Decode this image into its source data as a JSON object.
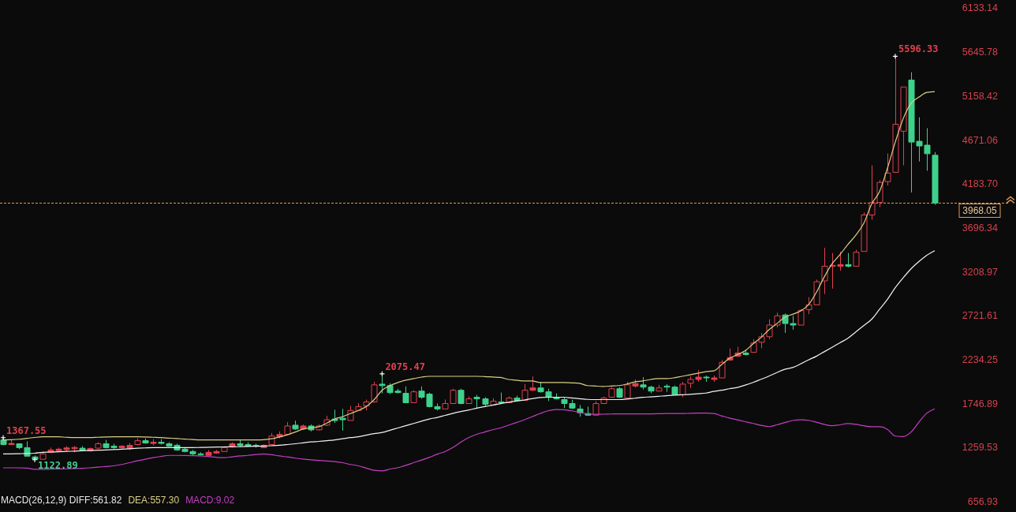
{
  "chart_data": {
    "type": "candlestick",
    "categories": [
      null,
      null,
      null,
      null,
      null,
      null,
      null,
      null,
      null,
      null,
      null,
      null,
      null,
      null,
      null,
      null,
      null,
      null,
      null,
      null,
      null,
      null,
      null,
      null,
      null,
      null,
      null,
      null,
      null,
      null,
      null,
      null,
      null,
      null,
      null,
      null,
      null,
      null,
      null,
      null,
      null,
      null,
      null,
      null,
      null,
      null,
      null,
      null,
      null,
      null,
      null,
      null,
      null,
      null,
      null,
      null,
      null,
      null,
      null,
      null,
      null,
      null,
      null,
      null,
      null,
      null,
      null,
      null,
      null,
      null,
      null,
      null,
      null,
      null,
      null,
      null,
      null,
      null,
      null,
      null,
      null,
      null,
      null,
      null,
      null,
      null,
      null,
      null,
      null,
      null,
      null,
      null,
      null,
      null,
      null,
      null,
      null,
      null,
      null,
      null,
      null,
      null,
      null,
      null,
      null,
      null,
      null,
      null,
      null,
      null,
      null,
      null,
      null,
      null,
      null,
      null,
      null,
      null,
      null
    ],
    "ohlc": [
      [
        1343,
        1367.55,
        1283,
        1291
      ],
      [
        1291,
        1343,
        1291,
        1304
      ],
      [
        1300,
        1300,
        1240,
        1257
      ],
      [
        1257,
        1326,
        1162,
        1162
      ],
      [
        1154,
        1171,
        1122.89,
        1128
      ],
      [
        1128,
        1214,
        1128,
        1188
      ],
      [
        1205,
        1257,
        1197,
        1231
      ],
      [
        1223,
        1257,
        1205,
        1240
      ],
      [
        1236,
        1274,
        1214,
        1254
      ],
      [
        1245,
        1274,
        1205,
        1259
      ],
      [
        1251,
        1274,
        1222,
        1231
      ],
      [
        1223,
        1257,
        1214,
        1248
      ],
      [
        1251,
        1317,
        1240,
        1300
      ],
      [
        1300,
        1343,
        1248,
        1257
      ],
      [
        1274,
        1300,
        1245,
        1257
      ],
      [
        1257,
        1283,
        1245,
        1274
      ],
      [
        1251,
        1308,
        1231,
        1283
      ],
      [
        1291,
        1360,
        1283,
        1334
      ],
      [
        1334,
        1360,
        1300,
        1308
      ],
      [
        1304,
        1351,
        1283,
        1317
      ],
      [
        1317,
        1351,
        1291,
        1304
      ],
      [
        1300,
        1317,
        1266,
        1274
      ],
      [
        1283,
        1300,
        1222,
        1231
      ],
      [
        1240,
        1257,
        1205,
        1214
      ],
      [
        1214,
        1231,
        1171,
        1188
      ],
      [
        1188,
        1205,
        1171,
        1180
      ],
      [
        1171,
        1231,
        1171,
        1205
      ],
      [
        1197,
        1231,
        1188,
        1214
      ],
      [
        1214,
        1274,
        1214,
        1257
      ],
      [
        1266,
        1317,
        1257,
        1300
      ],
      [
        1300,
        1343,
        1266,
        1283
      ],
      [
        1291,
        1317,
        1266,
        1274
      ],
      [
        1283,
        1300,
        1257,
        1274
      ],
      [
        1257,
        1291,
        1257,
        1283
      ],
      [
        1291,
        1420,
        1283,
        1386
      ],
      [
        1377,
        1437,
        1360,
        1403
      ],
      [
        1403,
        1540,
        1394,
        1497
      ],
      [
        1506,
        1557,
        1454,
        1463
      ],
      [
        1463,
        1514,
        1454,
        1497
      ],
      [
        1497,
        1514,
        1437,
        1454
      ],
      [
        1454,
        1514,
        1446,
        1497
      ],
      [
        1506,
        1609,
        1497,
        1566
      ],
      [
        1574,
        1677,
        1531,
        1557
      ],
      [
        1583,
        1687,
        1446,
        1566
      ],
      [
        1558,
        1720,
        1558,
        1669
      ],
      [
        1669,
        1750,
        1660,
        1712
      ],
      [
        1720,
        1790,
        1669,
        1763
      ],
      [
        1764,
        1987,
        1755,
        1953
      ],
      [
        1961,
        2075.47,
        1859,
        1944
      ],
      [
        1945,
        1970,
        1850,
        1867
      ],
      [
        1884,
        1910,
        1860,
        1867
      ],
      [
        1859,
        1936,
        1755,
        1755
      ],
      [
        1755,
        1893,
        1755,
        1876
      ],
      [
        1884,
        1936,
        1798,
        1816
      ],
      [
        1850,
        1867,
        1703,
        1712
      ],
      [
        1712,
        1746,
        1669,
        1686
      ],
      [
        1686,
        1790,
        1686,
        1746
      ],
      [
        1746,
        1910,
        1746,
        1893
      ],
      [
        1893,
        1910,
        1738,
        1746
      ],
      [
        1746,
        1824,
        1746,
        1798
      ],
      [
        1816,
        1841,
        1695,
        1798
      ],
      [
        1798,
        1816,
        1712,
        1738
      ],
      [
        1730,
        1806,
        1730,
        1772
      ],
      [
        1764,
        1867,
        1746,
        1755
      ],
      [
        1755,
        1824,
        1755,
        1807
      ],
      [
        1807,
        1833,
        1772,
        1781
      ],
      [
        1781,
        1961,
        1781,
        1893
      ],
      [
        1893,
        2047,
        1884,
        1919
      ],
      [
        1919,
        1987,
        1867,
        1876
      ],
      [
        1876,
        1910,
        1773,
        1816
      ],
      [
        1816,
        1858,
        1790,
        1798
      ],
      [
        1790,
        1816,
        1695,
        1746
      ],
      [
        1746,
        1790,
        1686,
        1695
      ],
      [
        1686,
        1729,
        1600,
        1643
      ],
      [
        1635,
        1712,
        1609,
        1617
      ],
      [
        1617,
        1773,
        1617,
        1746
      ],
      [
        1746,
        1824,
        1746,
        1807
      ],
      [
        1816,
        1928,
        1816,
        1910
      ],
      [
        1910,
        1928,
        1807,
        1816
      ],
      [
        1807,
        1987,
        1807,
        1953
      ],
      [
        1940,
        2013,
        1925,
        1968
      ],
      [
        1953,
        2038,
        1901,
        1928
      ],
      [
        1928,
        1944,
        1859,
        1884
      ],
      [
        1884,
        1953,
        1884,
        1919
      ],
      [
        1939,
        1961,
        1876,
        1928
      ],
      [
        1928,
        1945,
        1842,
        1842
      ],
      [
        1842,
        1987,
        1816,
        1961
      ],
      [
        1970,
        2047,
        1919,
        2013
      ],
      [
        2013,
        2116,
        1987,
        2039
      ],
      [
        2039,
        2056,
        1987,
        2030
      ],
      [
        2013,
        2056,
        1987,
        2030
      ],
      [
        2030,
        2228,
        2030,
        2203
      ],
      [
        2229,
        2357,
        2220,
        2255
      ],
      [
        2272,
        2375,
        2263,
        2306
      ],
      [
        2306,
        2340,
        2280,
        2289
      ],
      [
        2314,
        2460,
        2314,
        2418
      ],
      [
        2426,
        2530,
        2360,
        2487
      ],
      [
        2487,
        2680,
        2460,
        2616
      ],
      [
        2616,
        2754,
        2590,
        2719
      ],
      [
        2728,
        2745,
        2530,
        2633
      ],
      [
        2633,
        2719,
        2564,
        2616
      ],
      [
        2616,
        2792,
        2616,
        2779
      ],
      [
        2788,
        2926,
        2737,
        2840
      ],
      [
        2840,
        3120,
        2840,
        3097
      ],
      [
        3106,
        3472,
        2960,
        3269
      ],
      [
        3269,
        3415,
        3020,
        3278
      ],
      [
        3269,
        3430,
        3220,
        3286
      ],
      [
        3286,
        3415,
        3255,
        3269
      ],
      [
        3269,
        3450,
        3269,
        3424
      ],
      [
        3433,
        3865,
        3433,
        3837
      ],
      [
        3837,
        4387,
        3785,
        3975
      ],
      [
        3975,
        4224,
        3925,
        4198
      ],
      [
        4207,
        4520,
        4164,
        4301
      ],
      [
        4310,
        5596.33,
        4310,
        4843
      ],
      [
        4766,
        5256,
        4387,
        5256
      ],
      [
        5333,
        5420,
        4086,
        4645
      ],
      [
        4654,
        4920,
        4430,
        4602
      ],
      [
        4611,
        4800,
        4327,
        4516
      ],
      [
        4499,
        4533,
        3950,
        3968.05
      ]
    ],
    "series": [
      {
        "type": "line",
        "color": "#d9cf86",
        "values": [
          1343,
          1345,
          1350,
          1360,
          1370,
          1377,
          1377,
          1377,
          1372,
          1369,
          1369,
          1369,
          1372,
          1375,
          1377,
          1377,
          1377,
          1377,
          1375,
          1372,
          1369,
          1363,
          1357,
          1352,
          1347,
          1343,
          1343,
          1343,
          1343,
          1343,
          1343,
          1343,
          1343,
          1345,
          1355,
          1375,
          1400,
          1430,
          1463,
          1478,
          1489,
          1530,
          1575,
          1600,
          1635,
          1670,
          1713,
          1790,
          1893,
          1945,
          1979,
          2005,
          2022,
          2039,
          2048,
          2048,
          2048,
          2048,
          2048,
          2048,
          2048,
          2045,
          2040,
          2035,
          2013,
          2005,
          1996,
          1996,
          1979,
          1979,
          1979,
          1979,
          1975,
          1970,
          1945,
          1940,
          1936,
          1940,
          1945,
          1962,
          1985,
          1996,
          2013,
          2022,
          2022,
          2031,
          2048,
          2065,
          2082,
          2100,
          2108,
          2177,
          2246,
          2289,
          2332,
          2409,
          2478,
          2564,
          2633,
          2702,
          2736,
          2771,
          2840,
          2977,
          3149,
          3295,
          3398,
          3510,
          3613,
          3742,
          3957,
          4095,
          4353,
          4645,
          4903,
          5075,
          5144,
          5196,
          5204
        ]
      },
      {
        "type": "line",
        "color": "#f2f2f2",
        "values": [
          1188,
          1188,
          1190,
          1192,
          1195,
          1205,
          1208,
          1212,
          1215,
          1218,
          1222,
          1225,
          1228,
          1231,
          1235,
          1240,
          1245,
          1250,
          1254,
          1257,
          1257,
          1257,
          1257,
          1257,
          1257,
          1259,
          1261,
          1263,
          1265,
          1266,
          1268,
          1270,
          1272,
          1274,
          1278,
          1283,
          1291,
          1300,
          1310,
          1320,
          1326,
          1334,
          1343,
          1355,
          1368,
          1377,
          1395,
          1412,
          1425,
          1450,
          1475,
          1500,
          1525,
          1550,
          1575,
          1592,
          1615,
          1638,
          1658,
          1675,
          1695,
          1712,
          1728,
          1745,
          1760,
          1773,
          1785,
          1800,
          1812,
          1816,
          1816,
          1816,
          1808,
          1800,
          1792,
          1790,
          1790,
          1790,
          1790,
          1795,
          1805,
          1815,
          1820,
          1826,
          1833,
          1838,
          1843,
          1848,
          1855,
          1862,
          1880,
          1893,
          1910,
          1925,
          1950,
          1980,
          2015,
          2050,
          2090,
          2125,
          2145,
          2185,
          2230,
          2270,
          2320,
          2370,
          2420,
          2470,
          2540,
          2610,
          2680,
          2790,
          2900,
          3030,
          3140,
          3240,
          3320,
          3390,
          3441
        ]
      },
      {
        "type": "line",
        "color": "#c43fc4",
        "values": [
          1033,
          1033,
          1033,
          1030,
          1016,
          1016,
          1018,
          1020,
          1022,
          1025,
          1028,
          1033,
          1040,
          1048,
          1055,
          1070,
          1090,
          1110,
          1128,
          1145,
          1160,
          1171,
          1171,
          1170,
          1168,
          1165,
          1158,
          1150,
          1145,
          1155,
          1165,
          1171,
          1180,
          1188,
          1178,
          1165,
          1154,
          1140,
          1130,
          1122,
          1115,
          1108,
          1102,
          1090,
          1070,
          1055,
          1030,
          1005,
          999,
          1020,
          1035,
          1060,
          1090,
          1119,
          1150,
          1185,
          1215,
          1260,
          1320,
          1370,
          1405,
          1430,
          1455,
          1475,
          1505,
          1535,
          1565,
          1600,
          1635,
          1665,
          1680,
          1678,
          1665,
          1648,
          1630,
          1626,
          1628,
          1630,
          1632,
          1632,
          1632,
          1632,
          1632,
          1633,
          1635,
          1635,
          1635,
          1638,
          1640,
          1640,
          1635,
          1610,
          1585,
          1565,
          1545,
          1525,
          1505,
          1490,
          1510,
          1535,
          1558,
          1566,
          1560,
          1540,
          1515,
          1500,
          1510,
          1524,
          1515,
          1500,
          1489,
          1489,
          1460,
          1385,
          1380,
          1430,
          1540,
          1640,
          1687
        ]
      }
    ],
    "ylim": [
      656.93,
      6133.14
    ],
    "yticks": [
      656.93,
      1259.53,
      1746.89,
      2234.25,
      2721.61,
      3208.97,
      3696.34,
      {
        "value": 4183.7,
        "label": "4183.70"
      },
      4671.06,
      5158.42,
      5645.78,
      6133.14
    ],
    "tick_labels": "y",
    "ref_lines": [
      {
        "axis": "y",
        "value": 3968.05,
        "label": "3968.05",
        "color": "#e39a55",
        "line_style": "dashed"
      }
    ],
    "annotations": [
      "5596.33",
      "2075.47",
      "1367.55",
      "1122.89",
      "MACD(26,12,9) DIFF:561.82",
      "DEA:557.30",
      "MACD:9.02"
    ]
  }
}
